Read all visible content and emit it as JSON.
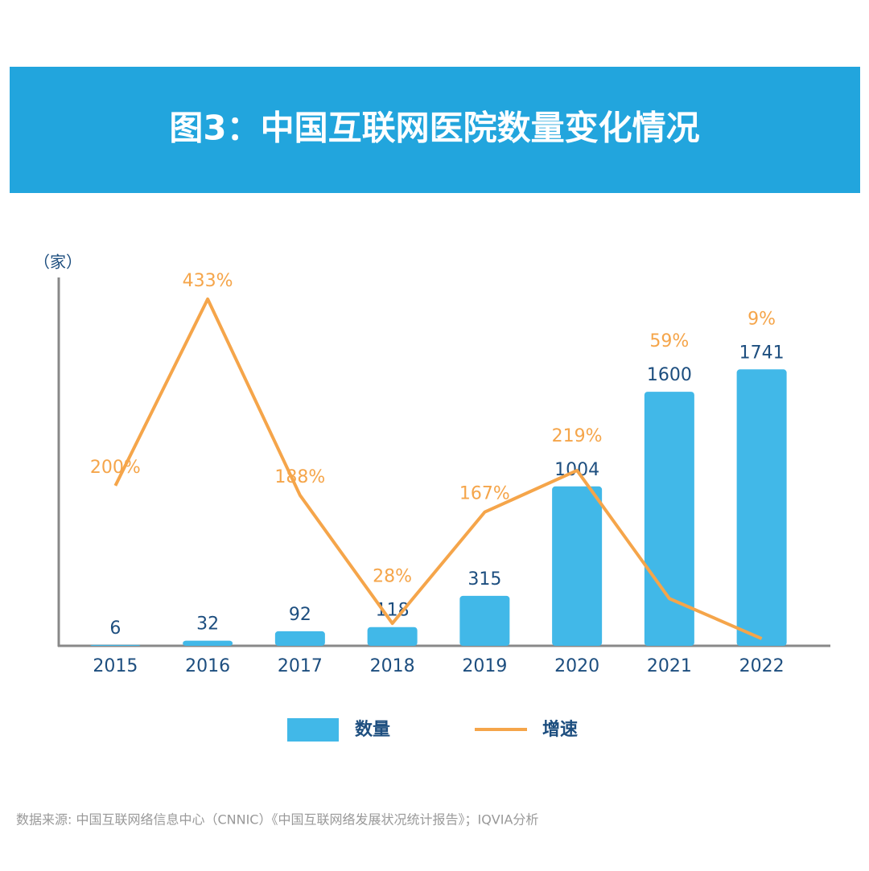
{
  "chart_data": {
    "type": "bar",
    "title": "图3：中国互联网医院数量变化情况",
    "unit_label": "（家）",
    "categories": [
      "2015",
      "2016",
      "2017",
      "2018",
      "2019",
      "2020",
      "2021",
      "2022"
    ],
    "ylim": [
      0,
      2320
    ],
    "y2lim": [
      0,
      460
    ],
    "series": [
      {
        "name": "数量",
        "type": "bar",
        "color": "#41b8e8",
        "values": [
          6,
          32,
          92,
          118,
          315,
          1004,
          1600,
          1741
        ]
      },
      {
        "name": "增速",
        "type": "line",
        "axis": "y2",
        "color": "#f5a54a",
        "values": [
          200,
          433,
          188,
          28,
          167,
          219,
          59,
          9
        ],
        "value_labels": [
          "200%",
          "433%",
          "188%",
          "28%",
          "167%",
          "219%",
          "59%",
          "9%"
        ]
      }
    ],
    "source": "数据来源: 中国互联网络信息中心（CNNIC）《中国互联网络发展状况统计报告》；IQVIA分析"
  }
}
